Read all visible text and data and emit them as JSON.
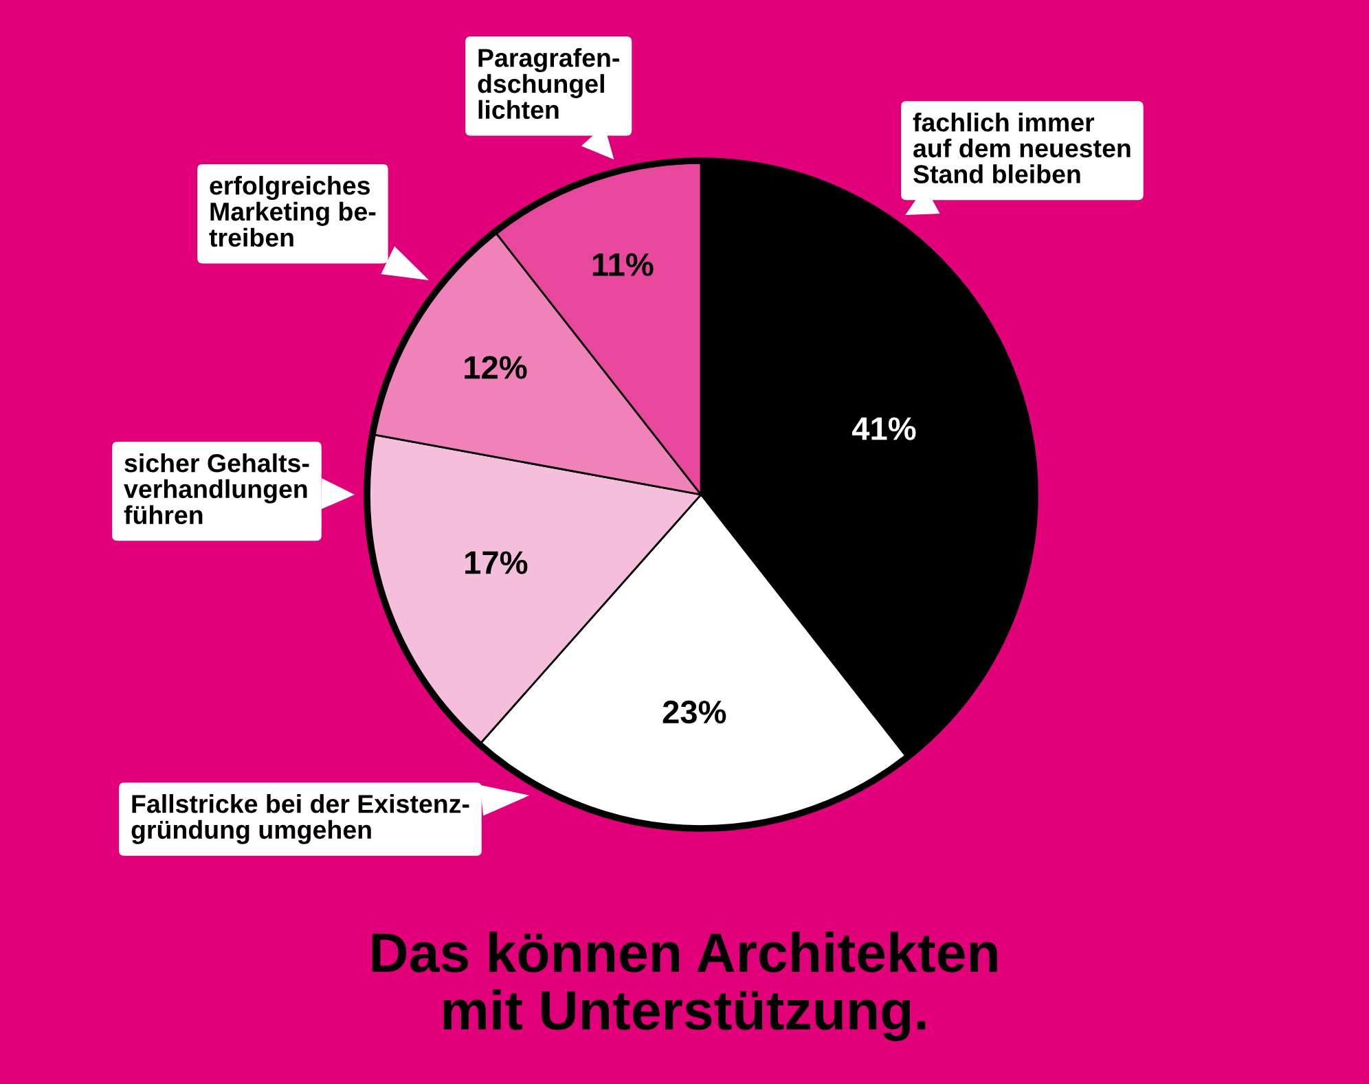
{
  "chart_data": {
    "type": "pie",
    "title": "Das können Architekten\nmit Unterstützung.",
    "categories": [
      "fachlich immer\nauf dem neuesten\nStand bleiben",
      "Fallstricke bei der Existenz-\ngründung umgehen",
      "sicher Gehalts-\nverhandlungen\nführen",
      "erfolgreiches\nMarketing be-\ntreiben",
      "Paragrafen-\ndschungel\nlichten"
    ],
    "values": [
      41,
      23,
      17,
      12,
      11
    ],
    "value_labels": [
      "41%",
      "23%",
      "17%",
      "12%",
      "11%"
    ],
    "colors": [
      "#000000",
      "#ffffff",
      "#f5bedb",
      "#f082ba",
      "#e8489c"
    ]
  }
}
